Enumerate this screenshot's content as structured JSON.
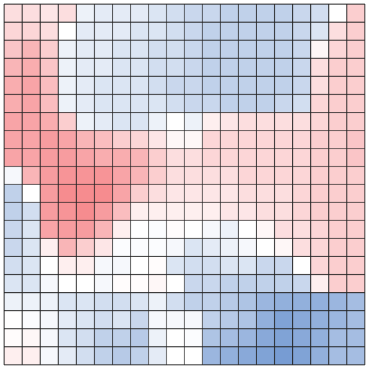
{
  "chart_data": {
    "type": "heatmap",
    "grid": true,
    "colormap": {
      "low": "#4a7bc4",
      "mid": "#ffffff",
      "high": "#f25a5f",
      "range": [
        -1,
        1
      ]
    },
    "rows": 20,
    "cols": 20,
    "values": [
      [
        0.2,
        0.2,
        0.15,
        0.2,
        -0.1,
        -0.15,
        -0.15,
        -0.15,
        -0.2,
        -0.25,
        -0.3,
        -0.3,
        -0.35,
        -0.35,
        -0.35,
        -0.35,
        -0.3,
        -0.25,
        0.0,
        0.3
      ],
      [
        0.25,
        0.25,
        0.2,
        0.0,
        -0.15,
        -0.15,
        -0.15,
        -0.2,
        -0.2,
        -0.25,
        -0.3,
        -0.35,
        -0.35,
        -0.35,
        -0.35,
        -0.35,
        -0.3,
        -0.2,
        0.2,
        0.3
      ],
      [
        0.35,
        0.45,
        0.3,
        -0.1,
        -0.15,
        -0.15,
        -0.2,
        -0.2,
        -0.25,
        -0.25,
        -0.3,
        -0.35,
        -0.35,
        -0.35,
        -0.35,
        -0.35,
        -0.3,
        0.05,
        0.25,
        0.3
      ],
      [
        0.45,
        0.5,
        0.35,
        -0.1,
        -0.15,
        -0.15,
        -0.2,
        -0.2,
        -0.25,
        -0.25,
        -0.3,
        -0.35,
        -0.35,
        -0.35,
        -0.35,
        -0.35,
        -0.3,
        0.2,
        0.3,
        0.3
      ],
      [
        0.5,
        0.55,
        0.4,
        -0.1,
        -0.15,
        -0.2,
        -0.2,
        -0.2,
        -0.25,
        -0.3,
        -0.3,
        -0.35,
        -0.35,
        -0.35,
        -0.35,
        -0.35,
        -0.3,
        0.2,
        0.3,
        0.3
      ],
      [
        0.5,
        0.55,
        0.4,
        -0.1,
        -0.15,
        -0.2,
        -0.2,
        -0.2,
        -0.2,
        -0.25,
        -0.3,
        -0.3,
        -0.35,
        -0.35,
        -0.35,
        -0.3,
        -0.25,
        0.25,
        0.3,
        0.3
      ],
      [
        0.55,
        0.55,
        0.5,
        0.3,
        -0.1,
        -0.15,
        -0.2,
        -0.2,
        -0.1,
        0.0,
        -0.1,
        0.1,
        0.15,
        0.2,
        0.2,
        0.2,
        0.2,
        0.25,
        0.3,
        0.3
      ],
      [
        0.55,
        0.55,
        0.6,
        0.55,
        0.45,
        0.4,
        0.3,
        0.25,
        0.15,
        0.05,
        0.05,
        0.25,
        0.25,
        0.25,
        0.25,
        0.25,
        0.25,
        0.3,
        0.3,
        0.35
      ],
      [
        0.55,
        0.55,
        0.6,
        0.6,
        0.55,
        0.5,
        0.5,
        0.45,
        0.3,
        0.2,
        0.2,
        0.25,
        0.25,
        0.25,
        0.25,
        0.25,
        0.25,
        0.3,
        0.3,
        0.35
      ],
      [
        -0.05,
        0.45,
        0.6,
        0.65,
        0.65,
        0.65,
        0.55,
        0.45,
        0.3,
        0.2,
        0.2,
        0.2,
        0.2,
        0.25,
        0.25,
        0.25,
        0.25,
        0.3,
        0.3,
        0.3
      ],
      [
        -0.35,
        0.0,
        0.6,
        0.7,
        0.7,
        0.7,
        0.55,
        0.3,
        0.2,
        0.15,
        0.15,
        0.15,
        0.15,
        0.2,
        0.2,
        0.2,
        0.25,
        0.3,
        0.3,
        0.3
      ],
      [
        -0.35,
        -0.25,
        0.6,
        0.65,
        0.7,
        0.6,
        0.4,
        0.1,
        0.1,
        0.1,
        0.1,
        0.1,
        0.15,
        0.15,
        0.2,
        0.2,
        0.25,
        0.3,
        0.3,
        0.3
      ],
      [
        -0.3,
        -0.2,
        0.55,
        0.6,
        0.6,
        0.45,
        0.1,
        0.0,
        -0.02,
        0.02,
        0.0,
        -0.05,
        -0.1,
        0.0,
        0.05,
        0.2,
        0.2,
        0.25,
        0.3,
        0.3
      ],
      [
        -0.3,
        -0.2,
        0.1,
        0.45,
        0.3,
        0.15,
        -0.02,
        -0.02,
        -0.02,
        -0.05,
        -0.2,
        -0.15,
        -0.1,
        -0.05,
        0.0,
        0.05,
        0.2,
        0.25,
        0.3,
        0.3
      ],
      [
        -0.25,
        -0.2,
        0.0,
        0.1,
        0.1,
        -0.05,
        -0.05,
        0.0,
        0.02,
        -0.2,
        -0.25,
        -0.25,
        -0.2,
        -0.2,
        -0.3,
        -0.3,
        0.0,
        0.25,
        0.3,
        0.3
      ],
      [
        -0.2,
        -0.2,
        -0.05,
        0.0,
        0.0,
        -0.05,
        0.02,
        0.02,
        0.05,
        0.0,
        -0.3,
        -0.3,
        -0.35,
        -0.35,
        -0.35,
        -0.35,
        -0.3,
        0.1,
        0.3,
        0.3
      ],
      [
        -0.1,
        -0.1,
        -0.1,
        -0.2,
        -0.2,
        -0.25,
        -0.25,
        -0.2,
        -0.1,
        -0.25,
        -0.35,
        -0.35,
        -0.4,
        -0.45,
        -0.55,
        -0.6,
        -0.6,
        -0.6,
        -0.55,
        -0.5
      ],
      [
        0.0,
        -0.02,
        -0.05,
        -0.15,
        -0.2,
        -0.25,
        -0.2,
        -0.3,
        -0.05,
        -0.05,
        -0.05,
        -0.35,
        -0.4,
        -0.45,
        -0.6,
        -0.7,
        -0.65,
        -0.6,
        -0.55,
        -0.5
      ],
      [
        0.02,
        0.05,
        -0.05,
        -0.2,
        -0.25,
        -0.35,
        -0.35,
        -0.4,
        -0.1,
        0.0,
        -0.02,
        -0.45,
        -0.5,
        -0.55,
        -0.65,
        -0.7,
        -0.65,
        -0.6,
        -0.5,
        -0.5
      ],
      [
        0.1,
        0.1,
        -0.05,
        -0.15,
        -0.25,
        -0.35,
        -0.4,
        -0.35,
        -0.15,
        0.0,
        0.0,
        -0.55,
        -0.6,
        -0.65,
        -0.7,
        -0.75,
        -0.7,
        -0.6,
        -0.5,
        -0.5
      ]
    ]
  }
}
